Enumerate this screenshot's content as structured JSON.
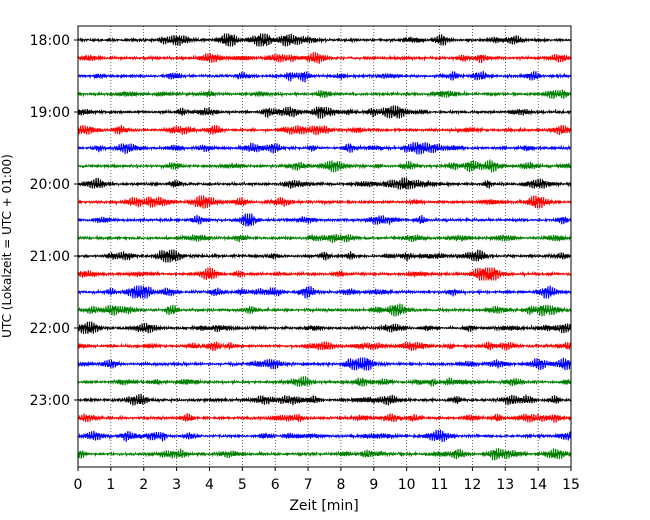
{
  "chart_data": {
    "type": "line",
    "chart_kind": "helicorder",
    "xlabel": "Zeit  [min]",
    "ylabel": "UTC (Lokalzeit = UTC + 01:00)",
    "xlim": [
      0,
      15
    ],
    "x_ticks": [
      "0",
      "1",
      "2",
      "3",
      "4",
      "5",
      "6",
      "7",
      "8",
      "9",
      "10",
      "11",
      "12",
      "13",
      "14",
      "15"
    ],
    "y_tick_labels": [
      "18:00",
      "19:00",
      "20:00",
      "21:00",
      "22:00",
      "23:00"
    ],
    "grid": "vertical dotted at each minute",
    "trace_interval_minutes": 15,
    "trace_start_times": [
      "18:00",
      "18:15",
      "18:30",
      "18:45",
      "19:00",
      "19:15",
      "19:30",
      "19:45",
      "20:00",
      "20:15",
      "20:30",
      "20:45",
      "21:00",
      "21:15",
      "21:30",
      "21:45",
      "22:00",
      "22:15",
      "22:30",
      "22:45",
      "23:00",
      "23:15",
      "23:30",
      "23:45"
    ],
    "colors_cycle": [
      "#000000",
      "#ff0000",
      "#0000ff",
      "#008000"
    ]
  }
}
